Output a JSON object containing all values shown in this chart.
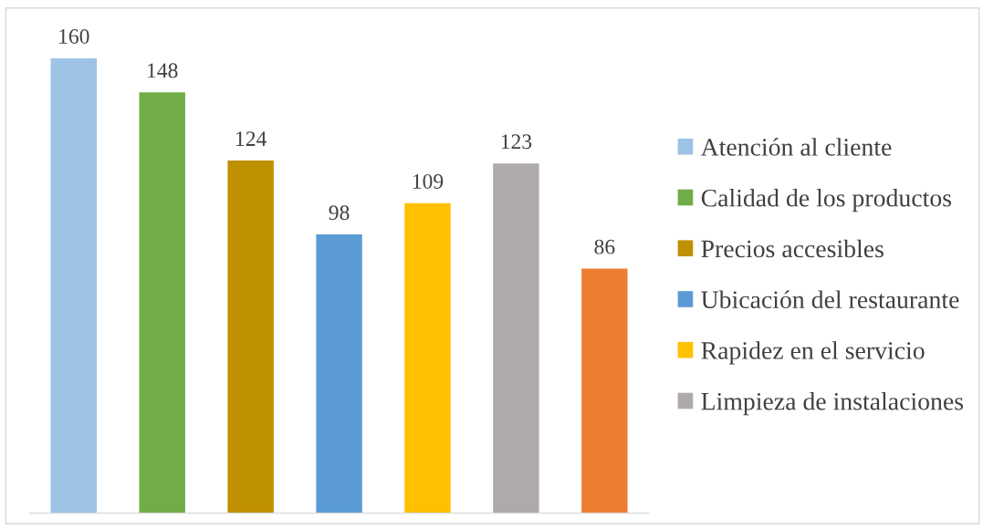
{
  "chart_data": {
    "type": "bar",
    "stacked": true,
    "categories": [
      null,
      null,
      null,
      null,
      null,
      null,
      null
    ],
    "series": [
      {
        "name": "Atención al cliente",
        "color": "#9dc3e6",
        "values": [
          160,
          null,
          null,
          null,
          null,
          null,
          null
        ]
      },
      {
        "name": "Calidad de los productos",
        "color": "#70ad47",
        "values": [
          null,
          148,
          null,
          null,
          null,
          null,
          null
        ]
      },
      {
        "name": "Precios accesibles",
        "color": "#bf9000",
        "values": [
          null,
          null,
          124,
          null,
          null,
          null,
          null
        ]
      },
      {
        "name": "Ubicación del restaurante",
        "color": "#5b9bd5",
        "values": [
          null,
          null,
          null,
          98,
          null,
          null,
          null
        ]
      },
      {
        "name": "Rapidez en el servicio",
        "color": "#ffc000",
        "values": [
          null,
          null,
          null,
          null,
          109,
          null,
          null
        ]
      },
      {
        "name": "Limpieza de instalaciones",
        "color": "#aeaaaa",
        "values": [
          null,
          null,
          null,
          null,
          null,
          123,
          null
        ]
      },
      {
        "color": "#ed7d31",
        "values": [
          null,
          null,
          null,
          null,
          null,
          null,
          86
        ]
      }
    ],
    "data_labels": true,
    "legend": "right"
  }
}
